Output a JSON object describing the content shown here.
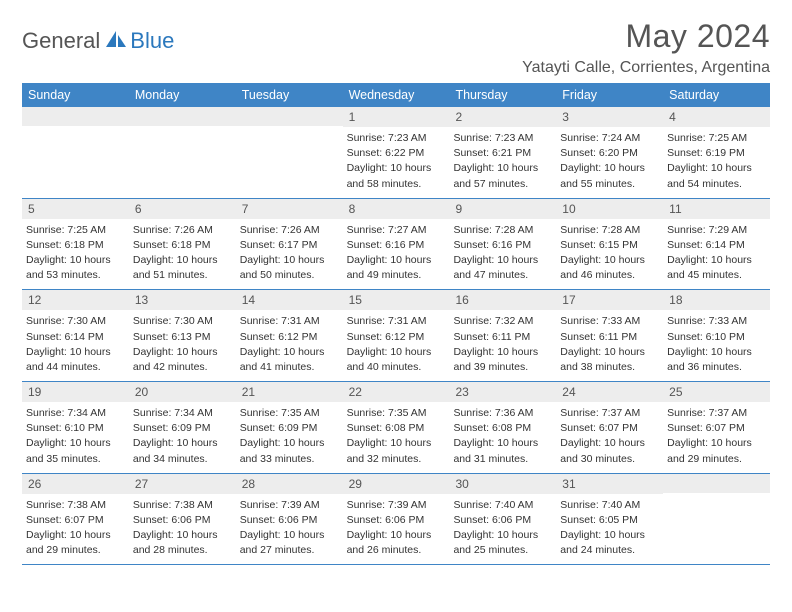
{
  "logo": {
    "general": "General",
    "blue": "Blue"
  },
  "title": "May 2024",
  "location": "Yatayti Calle, Corrientes, Argentina",
  "colors": {
    "header_bar": "#3f85c6",
    "day_header_bg": "#ededed",
    "text_main": "#333333",
    "text_gray": "#555555",
    "logo_accent": "#2b78bd",
    "background": "#ffffff"
  },
  "weekdays": [
    "Sunday",
    "Monday",
    "Tuesday",
    "Wednesday",
    "Thursday",
    "Friday",
    "Saturday"
  ],
  "weeks": [
    [
      null,
      null,
      null,
      {
        "n": "1",
        "sr": "7:23 AM",
        "ss": "6:22 PM",
        "dh": "10",
        "dm": "58"
      },
      {
        "n": "2",
        "sr": "7:23 AM",
        "ss": "6:21 PM",
        "dh": "10",
        "dm": "57"
      },
      {
        "n": "3",
        "sr": "7:24 AM",
        "ss": "6:20 PM",
        "dh": "10",
        "dm": "55"
      },
      {
        "n": "4",
        "sr": "7:25 AM",
        "ss": "6:19 PM",
        "dh": "10",
        "dm": "54"
      }
    ],
    [
      {
        "n": "5",
        "sr": "7:25 AM",
        "ss": "6:18 PM",
        "dh": "10",
        "dm": "53"
      },
      {
        "n": "6",
        "sr": "7:26 AM",
        "ss": "6:18 PM",
        "dh": "10",
        "dm": "51"
      },
      {
        "n": "7",
        "sr": "7:26 AM",
        "ss": "6:17 PM",
        "dh": "10",
        "dm": "50"
      },
      {
        "n": "8",
        "sr": "7:27 AM",
        "ss": "6:16 PM",
        "dh": "10",
        "dm": "49"
      },
      {
        "n": "9",
        "sr": "7:28 AM",
        "ss": "6:16 PM",
        "dh": "10",
        "dm": "47"
      },
      {
        "n": "10",
        "sr": "7:28 AM",
        "ss": "6:15 PM",
        "dh": "10",
        "dm": "46"
      },
      {
        "n": "11",
        "sr": "7:29 AM",
        "ss": "6:14 PM",
        "dh": "10",
        "dm": "45"
      }
    ],
    [
      {
        "n": "12",
        "sr": "7:30 AM",
        "ss": "6:14 PM",
        "dh": "10",
        "dm": "44"
      },
      {
        "n": "13",
        "sr": "7:30 AM",
        "ss": "6:13 PM",
        "dh": "10",
        "dm": "42"
      },
      {
        "n": "14",
        "sr": "7:31 AM",
        "ss": "6:12 PM",
        "dh": "10",
        "dm": "41"
      },
      {
        "n": "15",
        "sr": "7:31 AM",
        "ss": "6:12 PM",
        "dh": "10",
        "dm": "40"
      },
      {
        "n": "16",
        "sr": "7:32 AM",
        "ss": "6:11 PM",
        "dh": "10",
        "dm": "39"
      },
      {
        "n": "17",
        "sr": "7:33 AM",
        "ss": "6:11 PM",
        "dh": "10",
        "dm": "38"
      },
      {
        "n": "18",
        "sr": "7:33 AM",
        "ss": "6:10 PM",
        "dh": "10",
        "dm": "36"
      }
    ],
    [
      {
        "n": "19",
        "sr": "7:34 AM",
        "ss": "6:10 PM",
        "dh": "10",
        "dm": "35"
      },
      {
        "n": "20",
        "sr": "7:34 AM",
        "ss": "6:09 PM",
        "dh": "10",
        "dm": "34"
      },
      {
        "n": "21",
        "sr": "7:35 AM",
        "ss": "6:09 PM",
        "dh": "10",
        "dm": "33"
      },
      {
        "n": "22",
        "sr": "7:35 AM",
        "ss": "6:08 PM",
        "dh": "10",
        "dm": "32"
      },
      {
        "n": "23",
        "sr": "7:36 AM",
        "ss": "6:08 PM",
        "dh": "10",
        "dm": "31"
      },
      {
        "n": "24",
        "sr": "7:37 AM",
        "ss": "6:07 PM",
        "dh": "10",
        "dm": "30"
      },
      {
        "n": "25",
        "sr": "7:37 AM",
        "ss": "6:07 PM",
        "dh": "10",
        "dm": "29"
      }
    ],
    [
      {
        "n": "26",
        "sr": "7:38 AM",
        "ss": "6:07 PM",
        "dh": "10",
        "dm": "29"
      },
      {
        "n": "27",
        "sr": "7:38 AM",
        "ss": "6:06 PM",
        "dh": "10",
        "dm": "28"
      },
      {
        "n": "28",
        "sr": "7:39 AM",
        "ss": "6:06 PM",
        "dh": "10",
        "dm": "27"
      },
      {
        "n": "29",
        "sr": "7:39 AM",
        "ss": "6:06 PM",
        "dh": "10",
        "dm": "26"
      },
      {
        "n": "30",
        "sr": "7:40 AM",
        "ss": "6:06 PM",
        "dh": "10",
        "dm": "25"
      },
      {
        "n": "31",
        "sr": "7:40 AM",
        "ss": "6:05 PM",
        "dh": "10",
        "dm": "24"
      },
      null
    ]
  ],
  "labels": {
    "sunrise_prefix": "Sunrise: ",
    "sunset_prefix": "Sunset: ",
    "daylight_prefix": "Daylight: ",
    "hours_word": " hours",
    "and_word": "and ",
    "minutes_word": " minutes."
  },
  "typography": {
    "title_fontsize": 32,
    "location_fontsize": 16,
    "weekday_fontsize": 12.5,
    "daynum_fontsize": 12,
    "info_fontsize": 10.5
  }
}
